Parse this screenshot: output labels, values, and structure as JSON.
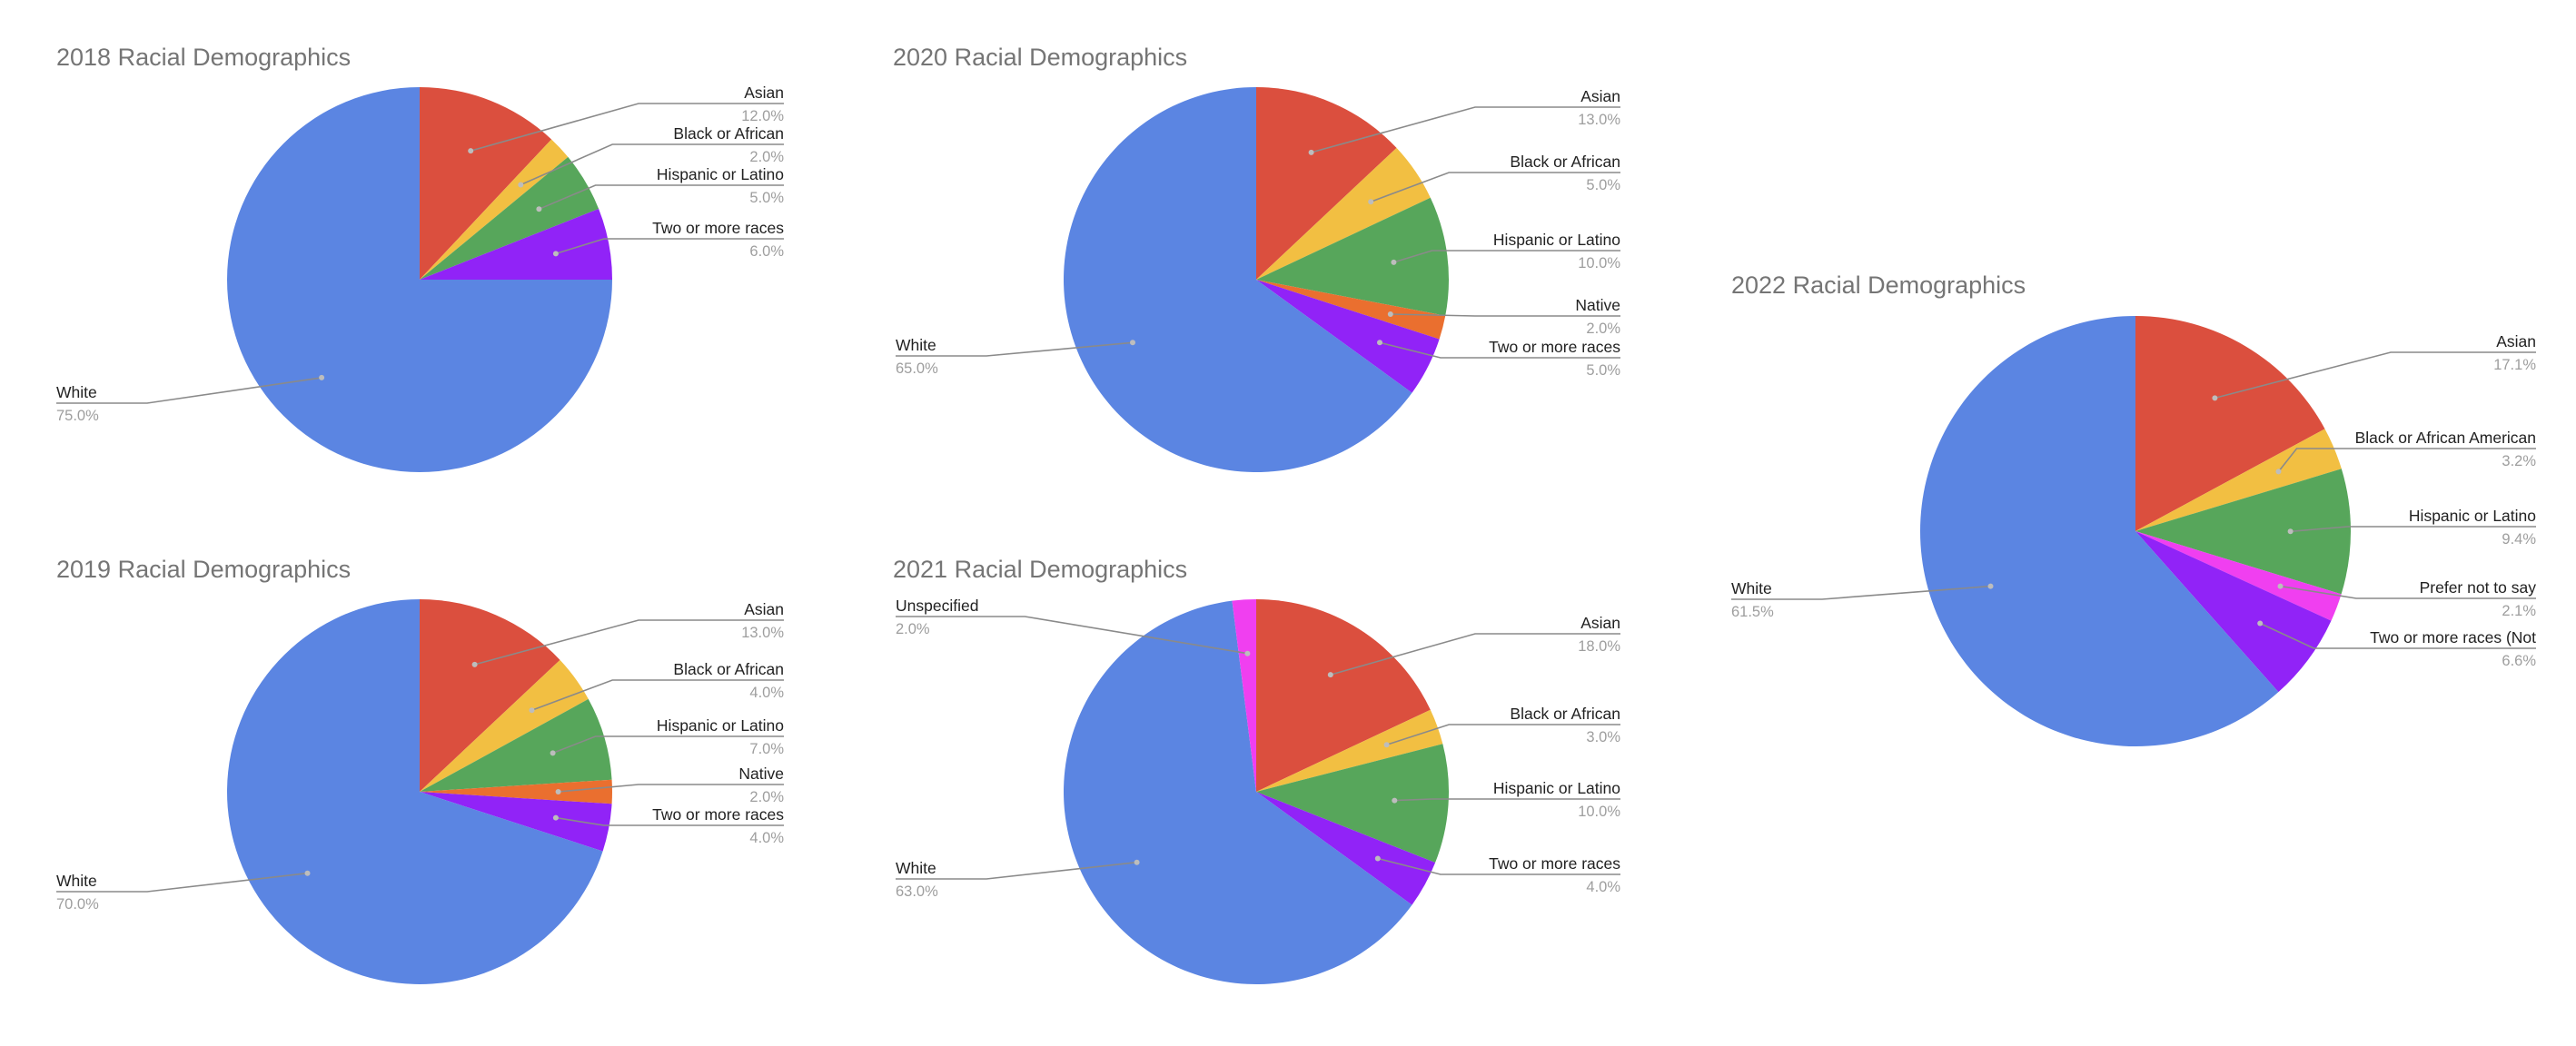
{
  "colors": {
    "asian": "#db4f3e",
    "black": "#f2bf42",
    "hispanic": "#57a65b",
    "native": "#ea6f2f",
    "two_or_more": "#9123f7",
    "white": "#5b85e2",
    "unspecified": "#f03ff0",
    "prefer_not": "#f03ff0"
  },
  "chart_data": [
    {
      "type": "pie",
      "title": "2018 Racial Demographics",
      "slices": [
        {
          "label": "Asian",
          "value": 12.0,
          "pct": "12.0%",
          "color_key": "asian"
        },
        {
          "label": "Black or African",
          "value": 2.0,
          "pct": "2.0%",
          "color_key": "black"
        },
        {
          "label": "Hispanic or Latino",
          "value": 5.0,
          "pct": "5.0%",
          "color_key": "hispanic"
        },
        {
          "label": "Two or more races",
          "value": 6.0,
          "pct": "6.0%",
          "color_key": "two_or_more"
        },
        {
          "label": "White",
          "value": 75.0,
          "pct": "75.0%",
          "color_key": "white"
        }
      ]
    },
    {
      "type": "pie",
      "title": "2019 Racial Demographics",
      "slices": [
        {
          "label": "Asian",
          "value": 13.0,
          "pct": "13.0%",
          "color_key": "asian"
        },
        {
          "label": "Black or African",
          "value": 4.0,
          "pct": "4.0%",
          "color_key": "black"
        },
        {
          "label": "Hispanic or Latino",
          "value": 7.0,
          "pct": "7.0%",
          "color_key": "hispanic"
        },
        {
          "label": "Native",
          "value": 2.0,
          "pct": "2.0%",
          "color_key": "native"
        },
        {
          "label": "Two or more races",
          "value": 4.0,
          "pct": "4.0%",
          "color_key": "two_or_more"
        },
        {
          "label": "White",
          "value": 70.0,
          "pct": "70.0%",
          "color_key": "white"
        }
      ]
    },
    {
      "type": "pie",
      "title": "2020 Racial Demographics",
      "slices": [
        {
          "label": "Asian",
          "value": 13.0,
          "pct": "13.0%",
          "color_key": "asian"
        },
        {
          "label": "Black or African",
          "value": 5.0,
          "pct": "5.0%",
          "color_key": "black"
        },
        {
          "label": "Hispanic or Latino",
          "value": 10.0,
          "pct": "10.0%",
          "color_key": "hispanic"
        },
        {
          "label": "Native",
          "value": 2.0,
          "pct": "2.0%",
          "color_key": "native"
        },
        {
          "label": "Two or more races",
          "value": 5.0,
          "pct": "5.0%",
          "color_key": "two_or_more"
        },
        {
          "label": "White",
          "value": 65.0,
          "pct": "65.0%",
          "color_key": "white"
        }
      ]
    },
    {
      "type": "pie",
      "title": "2021 Racial Demographics",
      "slices": [
        {
          "label": "Asian",
          "value": 18.0,
          "pct": "18.0%",
          "color_key": "asian"
        },
        {
          "label": "Black or African",
          "value": 3.0,
          "pct": "3.0%",
          "color_key": "black"
        },
        {
          "label": "Hispanic or Latino",
          "value": 10.0,
          "pct": "10.0%",
          "color_key": "hispanic"
        },
        {
          "label": "Two or more races",
          "value": 4.0,
          "pct": "4.0%",
          "color_key": "two_or_more"
        },
        {
          "label": "White",
          "value": 63.0,
          "pct": "63.0%",
          "color_key": "white"
        },
        {
          "label": "Unspecified",
          "value": 2.0,
          "pct": "2.0%",
          "color_key": "unspecified"
        }
      ]
    },
    {
      "type": "pie",
      "title": "2022 Racial Demographics",
      "slices": [
        {
          "label": "Asian",
          "value": 17.1,
          "pct": "17.1%",
          "color_key": "asian"
        },
        {
          "label": "Black or African American",
          "value": 3.2,
          "pct": "3.2%",
          "color_key": "black"
        },
        {
          "label": "Hispanic or Latino",
          "value": 9.4,
          "pct": "9.4%",
          "color_key": "hispanic"
        },
        {
          "label": "Prefer not to say",
          "value": 2.1,
          "pct": "2.1%",
          "color_key": "prefer_not"
        },
        {
          "label": "Two or more races (Not",
          "value": 6.6,
          "pct": "6.6%",
          "color_key": "two_or_more"
        },
        {
          "label": "White",
          "value": 61.5,
          "pct": "61.5%",
          "color_key": "white"
        }
      ]
    }
  ]
}
